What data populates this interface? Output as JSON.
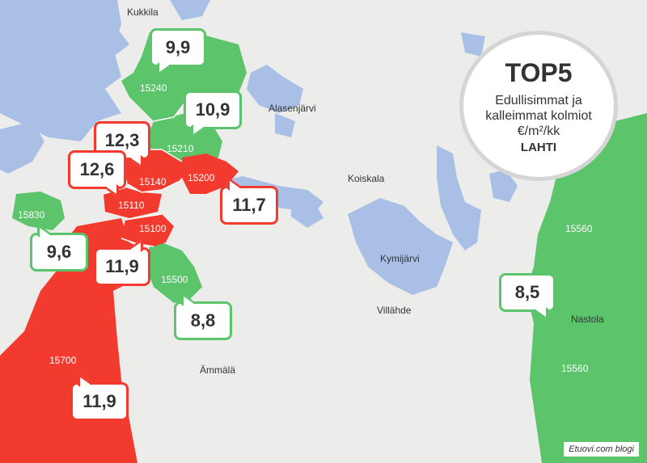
{
  "top5": {
    "title": "TOP5",
    "line1": "Edullisimmat ja",
    "line2": "kalleimmat kolmiot",
    "line3": "€/m²/kk",
    "city": "LAHTI"
  },
  "credit": "Etuovi.com blogi",
  "places": {
    "kukkila": "Kukkila",
    "alasenjarvi": "Alasenjärvi",
    "koiskala": "Koiskala",
    "kymijarvi": "Kymijärvi",
    "villahde": "Villähde",
    "ammala": "Ämmälä",
    "nastola": "Nastola"
  },
  "postcodes": {
    "p15240": "15240",
    "p15210": "15210",
    "p15140": "15140",
    "p15200": "15200",
    "p15110": "15110",
    "p15100": "15100",
    "p15830": "15830",
    "p15500": "15500",
    "p15700": "15700",
    "p15560a": "15560",
    "p15560b": "15560"
  },
  "prices": {
    "p15240": "9,9",
    "p15210": "10,9",
    "p15140": "12,3",
    "p15110": "12,6",
    "p15200": "11,7",
    "p15830": "9,6",
    "p15100": "11,9",
    "p15500": "8,8",
    "p15700": "11,9",
    "p15560": "8,5"
  },
  "colors": {
    "cheap": "#5cc46a",
    "expensive": "#f23a2f",
    "water": "#a9bfe6",
    "land": "#ececea"
  }
}
